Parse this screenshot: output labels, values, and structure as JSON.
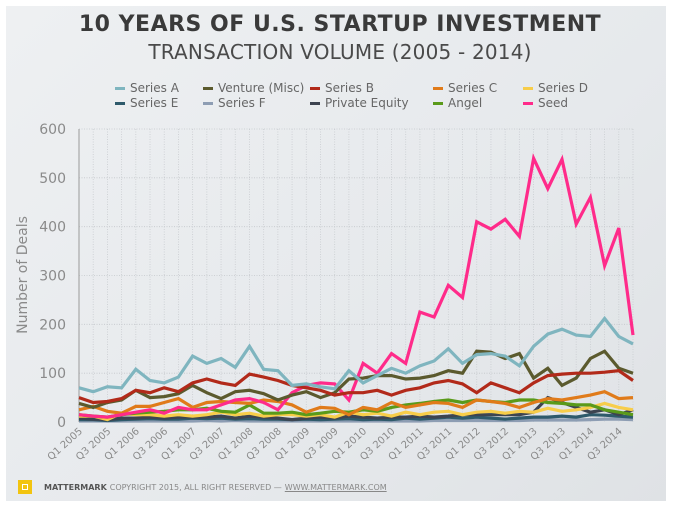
{
  "chart_data": {
    "type": "line",
    "title": "10 YEARS OF U.S. STARTUP INVESTMENT",
    "subtitle": "TRANSACTION VOLUME (2005 - 2014)",
    "xlabel": "",
    "ylabel": "Number of Deals",
    "ylim": [
      0,
      600
    ],
    "yticks": [
      0,
      100,
      200,
      300,
      400,
      500,
      600
    ],
    "grid": true,
    "legend_position": "top",
    "x": [
      "Q1 2005",
      "Q2 2005",
      "Q3 2005",
      "Q4 2005",
      "Q1 2006",
      "Q2 2006",
      "Q3 2006",
      "Q4 2006",
      "Q1 2007",
      "Q2 2007",
      "Q3 2007",
      "Q4 2007",
      "Q1 2008",
      "Q2 2008",
      "Q3 2008",
      "Q4 2008",
      "Q1 2009",
      "Q2 2009",
      "Q3 2009",
      "Q4 2009",
      "Q1 2010",
      "Q2 2010",
      "Q3 2010",
      "Q4 2010",
      "Q1 2011",
      "Q2 2011",
      "Q3 2011",
      "Q4 2011",
      "Q1 2012",
      "Q2 2012",
      "Q3 2012",
      "Q4 2012",
      "Q1 2013",
      "Q2 2013",
      "Q3 2013",
      "Q4 2013",
      "Q1 2014",
      "Q2 2014",
      "Q3 2014",
      "Q4 2014"
    ],
    "xtick_labels": [
      "Q1 2005",
      "Q3 2005",
      "Q1 2006",
      "Q3 2006",
      "Q1 2007",
      "Q3 2007",
      "Q1 2008",
      "Q3 2008",
      "Q1 2009",
      "Q3 2009",
      "Q1 2010",
      "Q3 2010",
      "Q1 2011",
      "Q3 2011",
      "Q1 2012",
      "Q3 2012",
      "Q1 2013",
      "Q3 2013",
      "Q1 2014",
      "Q3 2014"
    ],
    "series": [
      {
        "name": "Series A",
        "color": "#7fb5bf",
        "values": [
          70,
          62,
          72,
          70,
          108,
          85,
          80,
          92,
          135,
          120,
          130,
          112,
          155,
          108,
          105,
          75,
          78,
          72,
          68,
          105,
          80,
          95,
          110,
          100,
          115,
          125,
          150,
          120,
          138,
          140,
          135,
          115,
          155,
          180,
          190,
          178,
          175,
          212,
          175,
          160
        ]
      },
      {
        "name": "Venture (Misc)",
        "color": "#5b5a2e",
        "values": [
          38,
          30,
          40,
          45,
          65,
          50,
          52,
          58,
          75,
          60,
          48,
          62,
          65,
          58,
          45,
          55,
          62,
          50,
          60,
          88,
          90,
          95,
          95,
          88,
          90,
          95,
          105,
          100,
          145,
          143,
          130,
          140,
          90,
          110,
          75,
          90,
          130,
          145,
          110,
          100
        ]
      },
      {
        "name": "Series B",
        "color": "#b22a1a",
        "values": [
          50,
          40,
          42,
          48,
          65,
          60,
          70,
          62,
          80,
          88,
          80,
          75,
          98,
          92,
          85,
          75,
          70,
          65,
          55,
          60,
          60,
          65,
          55,
          65,
          70,
          80,
          85,
          78,
          60,
          80,
          70,
          60,
          80,
          95,
          98,
          100,
          100,
          102,
          105,
          85
        ]
      },
      {
        "name": "Series C",
        "color": "#e07b1a",
        "values": [
          25,
          32,
          22,
          18,
          32,
          32,
          40,
          48,
          30,
          40,
          42,
          40,
          38,
          45,
          42,
          35,
          20,
          30,
          28,
          15,
          30,
          25,
          40,
          30,
          35,
          40,
          38,
          30,
          45,
          42,
          38,
          30,
          40,
          48,
          45,
          50,
          55,
          62,
          48,
          50
        ]
      },
      {
        "name": "Series D",
        "color": "#f7cd4a",
        "values": [
          12,
          12,
          5,
          18,
          15,
          15,
          12,
          15,
          12,
          15,
          20,
          15,
          18,
          12,
          15,
          15,
          12,
          15,
          10,
          20,
          15,
          18,
          12,
          20,
          15,
          20,
          22,
          15,
          20,
          22,
          18,
          22,
          20,
          28,
          22,
          25,
          30,
          38,
          30,
          25
        ]
      },
      {
        "name": "Series E",
        "color": "#2e5a6b",
        "values": [
          5,
          5,
          3,
          5,
          6,
          7,
          6,
          6,
          8,
          7,
          8,
          6,
          7,
          6,
          6,
          5,
          6,
          5,
          6,
          7,
          5,
          6,
          5,
          8,
          6,
          8,
          10,
          8,
          10,
          8,
          6,
          8,
          10,
          10,
          12,
          10,
          15,
          14,
          12,
          10
        ]
      },
      {
        "name": "Series F",
        "color": "#8d9db3",
        "values": [
          2,
          2,
          2,
          2,
          2,
          2,
          2,
          2,
          2,
          3,
          2,
          3,
          2,
          2,
          2,
          2,
          2,
          2,
          2,
          2,
          2,
          2,
          2,
          2,
          2,
          3,
          3,
          3,
          3,
          3,
          3,
          3,
          4,
          4,
          4,
          4,
          5,
          6,
          6,
          5
        ]
      },
      {
        "name": "Private Equity",
        "color": "#3d4450",
        "values": [
          8,
          6,
          5,
          8,
          8,
          10,
          8,
          10,
          10,
          10,
          12,
          8,
          12,
          10,
          8,
          5,
          8,
          10,
          8,
          12,
          10,
          8,
          10,
          10,
          12,
          10,
          12,
          15,
          15,
          15,
          15,
          15,
          20,
          50,
          40,
          30,
          20,
          25,
          15,
          25
        ]
      },
      {
        "name": "Angel",
        "color": "#5a9a1a",
        "values": [
          15,
          12,
          10,
          15,
          18,
          20,
          22,
          25,
          25,
          28,
          22,
          20,
          35,
          18,
          18,
          20,
          15,
          18,
          22,
          20,
          25,
          22,
          30,
          35,
          38,
          42,
          45,
          40,
          45,
          42,
          40,
          45,
          45,
          40,
          38,
          35,
          35,
          25,
          20,
          15
        ]
      },
      {
        "name": "Seed",
        "color": "#ff2b8a",
        "values": [
          15,
          12,
          10,
          15,
          20,
          25,
          18,
          30,
          25,
          25,
          35,
          45,
          48,
          40,
          25,
          60,
          75,
          80,
          78,
          45,
          120,
          100,
          140,
          120,
          225,
          215,
          280,
          255,
          410,
          395,
          415,
          380,
          540,
          478,
          538,
          405,
          460,
          320,
          397,
          178
        ]
      }
    ]
  },
  "footer": {
    "brand": "MATTERMARK",
    "copyright": "COPYRIGHT 2015, ALL RIGHT RESERVED —",
    "link": "WWW.MATTERMARK.COM"
  }
}
